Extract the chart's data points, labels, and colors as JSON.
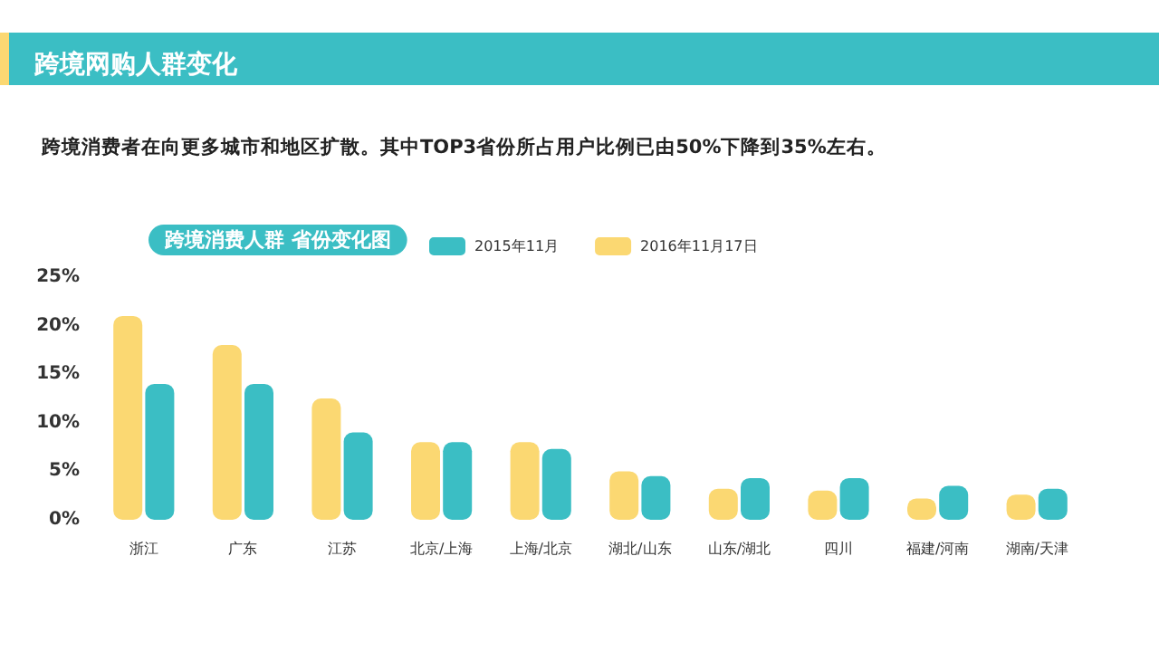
{
  "chart_data": {
    "type": "bar",
    "title": "跨境网购人群变化",
    "subtitle": "跨境消费者在向更多城市和地区扩散。其中TOP3省份所占用户比例已由50%下降到35%左右。",
    "annotations": [
      "跨境消费人群 省份变化图"
    ],
    "categories": [
      "浙江",
      "广东",
      "江苏",
      "北京/上海",
      "上海/北京",
      "湖北/山东",
      "山东/湖北",
      "四川",
      "福建/河南",
      "湖南/天津"
    ],
    "series": [
      {
        "name": "2016年11月17日",
        "color": "#fbd872",
        "values": [
          21,
          18,
          12.5,
          8,
          8,
          5,
          3.2,
          3,
          2.2,
          2.6
        ]
      },
      {
        "name": "2015年11月",
        "color": "#3bbec4",
        "values": [
          14,
          14,
          9,
          8,
          7.3,
          4.5,
          4.3,
          4.3,
          3.5,
          3.2
        ]
      }
    ],
    "ylim": [
      0,
      25
    ],
    "yticks": [
      {
        "value": 0,
        "label": "0%"
      },
      {
        "value": 5,
        "label": "5%"
      },
      {
        "value": 10,
        "label": "10%"
      },
      {
        "value": 15,
        "label": "15%"
      },
      {
        "value": 20,
        "label": "20%"
      },
      {
        "value": 25,
        "label": "25%"
      }
    ],
    "grid": false,
    "legend": "top"
  }
}
